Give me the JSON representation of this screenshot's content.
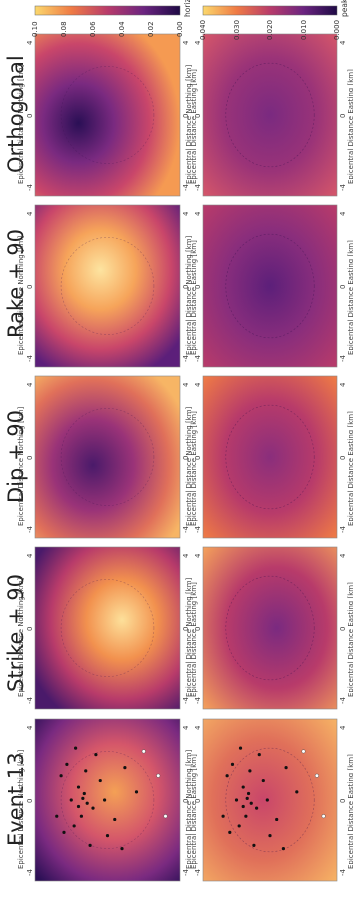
{
  "columns": [
    "Orthogonal",
    "Rake + 90",
    "Dip + 90",
    "Strike + 90",
    "Event 13"
  ],
  "axes": {
    "xlabel": "Epicentral Distance Easting [km]",
    "ylabel": "Epicentral Distance Northing [km]",
    "ticks": [
      "-4",
      "0",
      "4"
    ]
  },
  "colorbars": {
    "top": {
      "label": "horizontal peak velocity [mm/s]",
      "ticks": [
        "0.10",
        "0.08",
        "0.06",
        "0.04",
        "0.02",
        "0.00"
      ]
    },
    "bottom": {
      "label": "peak sound pressure level [Pa]",
      "ticks": [
        "0.040",
        "0.030",
        "0.020",
        "0.010",
        "0.000"
      ]
    }
  },
  "colors": {
    "low": "#1e0a45",
    "mid_low": "#6b2480",
    "mid": "#b83b6a",
    "mid_high": "#ef7b45",
    "high": "#fbd86d"
  },
  "chart_data": [
    {
      "type": "heatmap",
      "title": "Orthogonal",
      "quantity": "horizontal peak velocity [mm/s]",
      "xlim": [
        -4,
        4
      ],
      "ylim": [
        -4,
        4
      ],
      "colorbar_range": [
        0.0,
        0.1
      ]
    },
    {
      "type": "heatmap",
      "title": "Rake + 90",
      "quantity": "horizontal peak velocity [mm/s]",
      "xlim": [
        -4,
        4
      ],
      "ylim": [
        -4,
        4
      ],
      "colorbar_range": [
        0.0,
        0.1
      ]
    },
    {
      "type": "heatmap",
      "title": "Dip + 90",
      "quantity": "horizontal peak velocity [mm/s]",
      "xlim": [
        -4,
        4
      ],
      "ylim": [
        -4,
        4
      ],
      "colorbar_range": [
        0.0,
        0.1
      ]
    },
    {
      "type": "heatmap",
      "title": "Strike + 90",
      "quantity": "horizontal peak velocity [mm/s]",
      "xlim": [
        -4,
        4
      ],
      "ylim": [
        -4,
        4
      ],
      "colorbar_range": [
        0.0,
        0.1
      ]
    },
    {
      "type": "heatmap",
      "title": "Event 13",
      "quantity": "horizontal peak velocity [mm/s]",
      "xlim": [
        -4,
        4
      ],
      "ylim": [
        -4,
        4
      ],
      "colorbar_range": [
        0.0,
        0.1
      ]
    },
    {
      "type": "heatmap",
      "title": "Orthogonal",
      "quantity": "peak sound pressure level [Pa]",
      "xlim": [
        -4,
        4
      ],
      "ylim": [
        -4,
        4
      ],
      "colorbar_range": [
        0.0,
        0.04
      ]
    },
    {
      "type": "heatmap",
      "title": "Rake + 90",
      "quantity": "peak sound pressure level [Pa]",
      "xlim": [
        -4,
        4
      ],
      "ylim": [
        -4,
        4
      ],
      "colorbar_range": [
        0.0,
        0.04
      ]
    },
    {
      "type": "heatmap",
      "title": "Dip + 90",
      "quantity": "peak sound pressure level [Pa]",
      "xlim": [
        -4,
        4
      ],
      "ylim": [
        -4,
        4
      ],
      "colorbar_range": [
        0.0,
        0.04
      ]
    },
    {
      "type": "heatmap",
      "title": "Strike + 90",
      "quantity": "peak sound pressure level [Pa]",
      "xlim": [
        -4,
        4
      ],
      "ylim": [
        -4,
        4
      ],
      "colorbar_range": [
        0.0,
        0.04
      ]
    },
    {
      "type": "heatmap",
      "title": "Event 13",
      "quantity": "peak sound pressure level [Pa]",
      "xlim": [
        -4,
        4
      ],
      "ylim": [
        -4,
        4
      ],
      "colorbar_range": [
        0.0,
        0.04
      ]
    }
  ]
}
